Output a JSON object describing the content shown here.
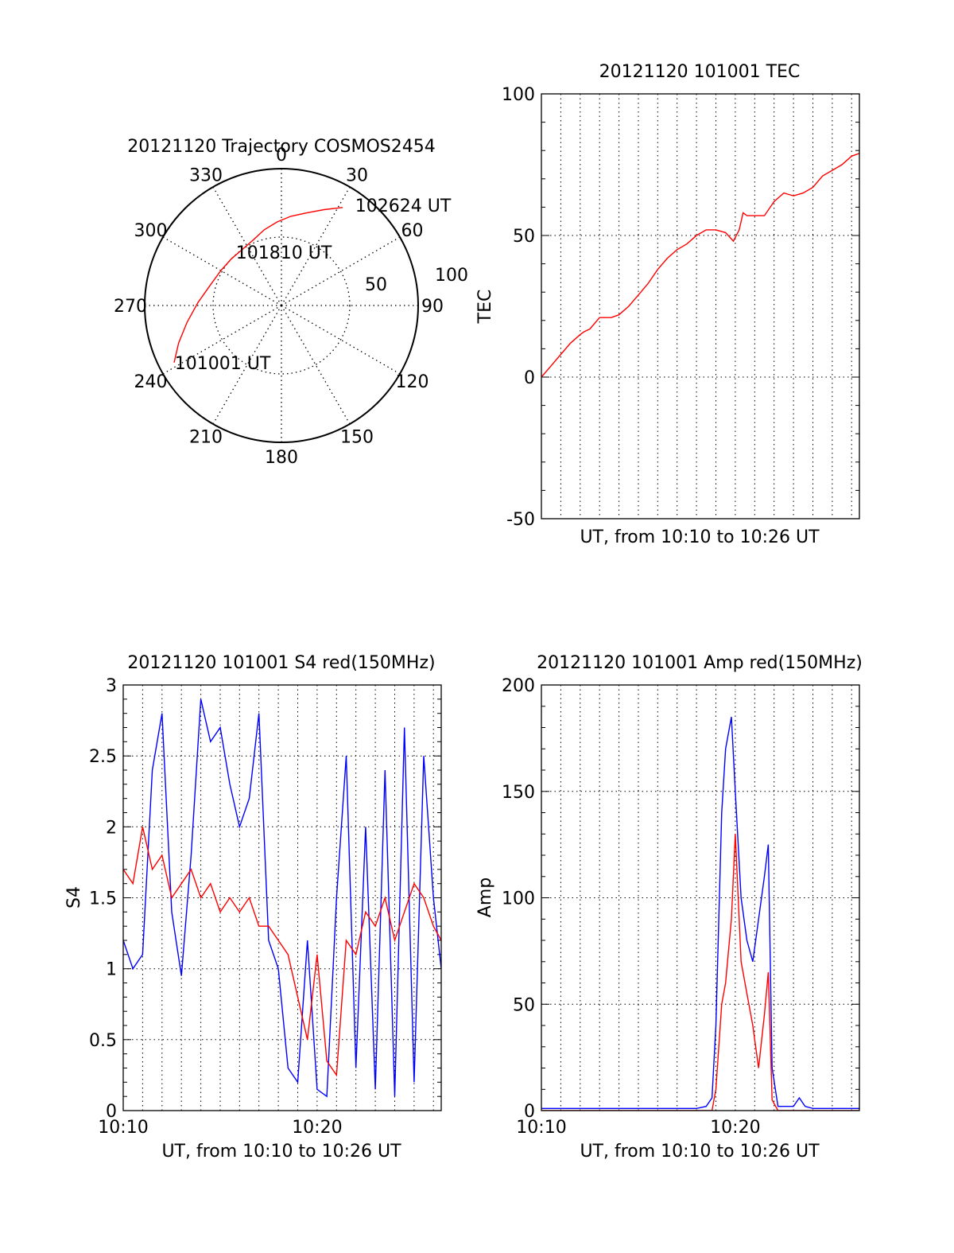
{
  "chart_data": [
    {
      "type": "polar",
      "title": "20121120 Trajectory COSMOS2454",
      "angle_labels": [
        "0",
        "30",
        "60",
        "90",
        "120",
        "150",
        "180",
        "210",
        "240",
        "270",
        "300",
        "330"
      ],
      "radial_labels": [
        "50",
        "100"
      ],
      "radial_rlim": [
        0,
        90
      ],
      "grid": true,
      "series": [
        {
          "color": "#ff0000",
          "points": [
            {
              "az": 242,
              "el": 10
            },
            {
              "az": 250,
              "el": 18
            },
            {
              "az": 260,
              "el": 27
            },
            {
              "az": 272,
              "el": 35
            },
            {
              "az": 285,
              "el": 41
            },
            {
              "az": 300,
              "el": 44
            },
            {
              "az": 313,
              "el": 45
            },
            {
              "az": 325,
              "el": 45
            },
            {
              "az": 337,
              "el": 43
            },
            {
              "az": 347,
              "el": 39
            },
            {
              "az": 357,
              "el": 35
            },
            {
              "az": 6,
              "el": 31
            },
            {
              "az": 15,
              "el": 27
            },
            {
              "az": 24,
              "el": 21
            },
            {
              "az": 32,
              "el": 14
            }
          ]
        }
      ],
      "annotations": [
        {
          "text": "102624 UT",
          "az": 35,
          "el": 10
        },
        {
          "text": "101810 UT",
          "az": 350,
          "el": 43
        },
        {
          "text": "101001 UT",
          "az": 228,
          "el": 27
        }
      ]
    },
    {
      "type": "line",
      "title": "20121120 101001 TEC",
      "xlabel": "UT, from 10:10 to 10:26 UT",
      "ylabel": "TEC",
      "ylim": [
        -50,
        100
      ],
      "yticks": [
        "-50",
        "0",
        "50",
        "100"
      ],
      "xlim_minutes": [
        0,
        16.4
      ],
      "x_tick_labels": [],
      "grid": true,
      "series": [
        {
          "color": "#ff0000",
          "x": [
            0,
            0.5,
            1,
            1.5,
            2,
            2.2,
            2.5,
            3,
            3.3,
            3.6,
            4,
            4.5,
            5,
            5.5,
            6,
            6.5,
            7,
            7.5,
            8,
            8.5,
            9,
            9.5,
            9.9,
            10.2,
            10.4,
            10.6,
            10.8,
            11,
            11.5,
            12,
            12.5,
            13,
            13.5,
            14,
            14.5,
            15,
            15.5,
            16,
            16.4
          ],
          "y": [
            0,
            4,
            8,
            12,
            15,
            16,
            17,
            21,
            21,
            21,
            22,
            25,
            29,
            33,
            38,
            42,
            45,
            47,
            50,
            52,
            52,
            51,
            48,
            52,
            58,
            57,
            57,
            57,
            57,
            62,
            65,
            64,
            65,
            67,
            71,
            73,
            75,
            78,
            79
          ]
        }
      ]
    },
    {
      "type": "line",
      "title": "20121120 101001 S4 red(150MHz)",
      "xlabel": "UT, from 10:10 to 10:26 UT",
      "ylabel": "S4",
      "ylim": [
        0,
        3
      ],
      "yticks": [
        "0",
        "0.5",
        "1",
        "1.5",
        "2",
        "2.5",
        "3"
      ],
      "xlim_minutes": [
        0,
        16.4
      ],
      "x_tick_labels": [
        {
          "text": "10:10",
          "minute": 0
        },
        {
          "text": "10:20",
          "minute": 10
        }
      ],
      "grid": true,
      "series": [
        {
          "color": "#0000ff",
          "x": [
            0,
            0.5,
            1,
            1.5,
            2,
            2.5,
            3,
            3.5,
            4,
            4.5,
            5,
            5.5,
            6,
            6.5,
            7,
            7.5,
            8,
            8.5,
            9,
            9.5,
            10,
            10.5,
            11,
            11.5,
            12,
            12.5,
            13,
            13.5,
            14,
            14.5,
            15,
            15.5,
            16,
            16.4
          ],
          "y": [
            1.2,
            1.0,
            1.1,
            2.4,
            2.8,
            1.4,
            0.95,
            1.8,
            2.9,
            2.6,
            2.7,
            2.3,
            2.0,
            2.2,
            2.8,
            1.2,
            1.0,
            0.3,
            0.2,
            1.2,
            0.15,
            0.1,
            1.5,
            2.5,
            0.3,
            2.0,
            0.15,
            2.4,
            0.1,
            2.7,
            0.2,
            2.5,
            1.5,
            1.0
          ]
        },
        {
          "color": "#ff0000",
          "x": [
            0,
            0.5,
            1,
            1.5,
            2,
            2.5,
            3,
            3.5,
            4,
            4.5,
            5,
            5.5,
            6,
            6.5,
            7,
            7.5,
            8,
            8.5,
            9,
            9.5,
            10,
            10.5,
            11,
            11.5,
            12,
            12.5,
            13,
            13.5,
            14,
            14.5,
            15,
            15.5,
            16,
            16.4
          ],
          "y": [
            1.7,
            1.6,
            2.0,
            1.7,
            1.8,
            1.5,
            1.6,
            1.7,
            1.5,
            1.6,
            1.4,
            1.5,
            1.4,
            1.5,
            1.3,
            1.3,
            1.2,
            1.1,
            0.8,
            0.5,
            1.1,
            0.35,
            0.25,
            1.2,
            1.1,
            1.4,
            1.3,
            1.5,
            1.2,
            1.4,
            1.6,
            1.5,
            1.3,
            1.2
          ]
        }
      ]
    },
    {
      "type": "line",
      "title": "20121120 101001 Amp red(150MHz)",
      "xlabel": "UT, from 10:10 to 10:26 UT",
      "ylabel": "Amp",
      "ylim": [
        0,
        200
      ],
      "yticks": [
        "0",
        "50",
        "100",
        "150",
        "200"
      ],
      "xlim_minutes": [
        0,
        16.4
      ],
      "x_tick_labels": [
        {
          "text": "10:10",
          "minute": 0
        },
        {
          "text": "10:20",
          "minute": 10
        }
      ],
      "grid": true,
      "series": [
        {
          "color": "#0000ff",
          "x": [
            0,
            1,
            2,
            3,
            4,
            5,
            6,
            7,
            8,
            8.5,
            8.8,
            9.0,
            9.3,
            9.5,
            9.8,
            10.0,
            10.3,
            10.6,
            10.9,
            11.2,
            11.5,
            11.7,
            11.9,
            12.2,
            13.0,
            13.3,
            13.6,
            14,
            15,
            16,
            16.4
          ],
          "y": [
            1,
            1,
            1,
            1,
            1,
            1,
            1,
            1,
            1,
            2,
            6,
            40,
            140,
            170,
            185,
            150,
            100,
            80,
            70,
            90,
            110,
            125,
            20,
            2,
            2,
            6,
            2,
            1,
            1,
            1,
            1
          ]
        },
        {
          "color": "#ff0000",
          "x": [
            0,
            8.8,
            9.0,
            9.3,
            9.5,
            9.8,
            10.0,
            10.3,
            10.6,
            10.9,
            11.2,
            11.5,
            11.7,
            11.9,
            12.2,
            16.4
          ],
          "y": [
            0,
            0,
            10,
            50,
            60,
            90,
            130,
            70,
            55,
            40,
            20,
            45,
            65,
            5,
            0,
            0
          ]
        }
      ]
    }
  ]
}
